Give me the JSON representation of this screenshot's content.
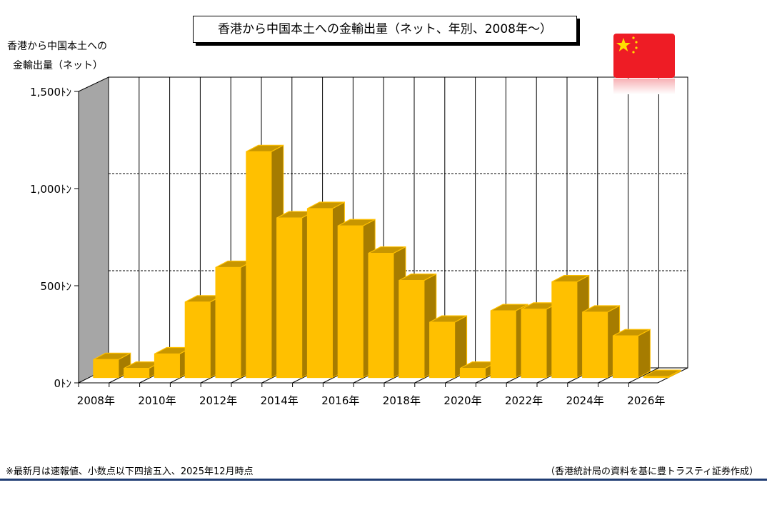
{
  "title": "香港から中国本土への金輸出量（ネット、年別、2008年～）",
  "y_label_lines": [
    "香港から中国本土への",
    "金輸出量（ネット）"
  ],
  "footnote": "※最新月は速報値、小数点以下四捨五入、2025年12月時点",
  "source": "（香港統計局の資料を基に豊トラスティ証券作成）",
  "flag_icon": "china-flag",
  "colors": {
    "bar": "#ffc000",
    "bar_side": "#a67c00",
    "bar_top": "#c89600",
    "wall": "#a6a6a6",
    "rule": "#1f3c73"
  },
  "chart_data": {
    "type": "bar",
    "title": "香港から中国本土への金輸出量（ネット、年別、2008年～）",
    "ylabel": "香港から中国本土への金輸出量（ネット）",
    "categories": [
      "2008年",
      "2009年",
      "2010年",
      "2011年",
      "2012年",
      "2013年",
      "2014年",
      "2015年",
      "2016年",
      "2017年",
      "2018年",
      "2019年",
      "2020年",
      "2021年",
      "2022年",
      "2023年",
      "2024年",
      "2025年",
      "2026年"
    ],
    "x_tick_labels": [
      "2008年",
      "2010年",
      "2012年",
      "2014年",
      "2016年",
      "2018年",
      "2020年",
      "2022年",
      "2024年",
      "2026年"
    ],
    "values": [
      93,
      48,
      122,
      389,
      567,
      1163,
      822,
      870,
      781,
      640,
      500,
      285,
      48,
      344,
      352,
      493,
      337,
      215,
      0
    ],
    "y_ticks": [
      0,
      500,
      1000,
      1500
    ],
    "y_tick_labels": [
      "0ﾄﾝ",
      "500ﾄﾝ",
      "1,000ﾄﾝ",
      "1,500ﾄﾝ"
    ],
    "ylim": [
      0,
      1500
    ],
    "grid": true
  }
}
